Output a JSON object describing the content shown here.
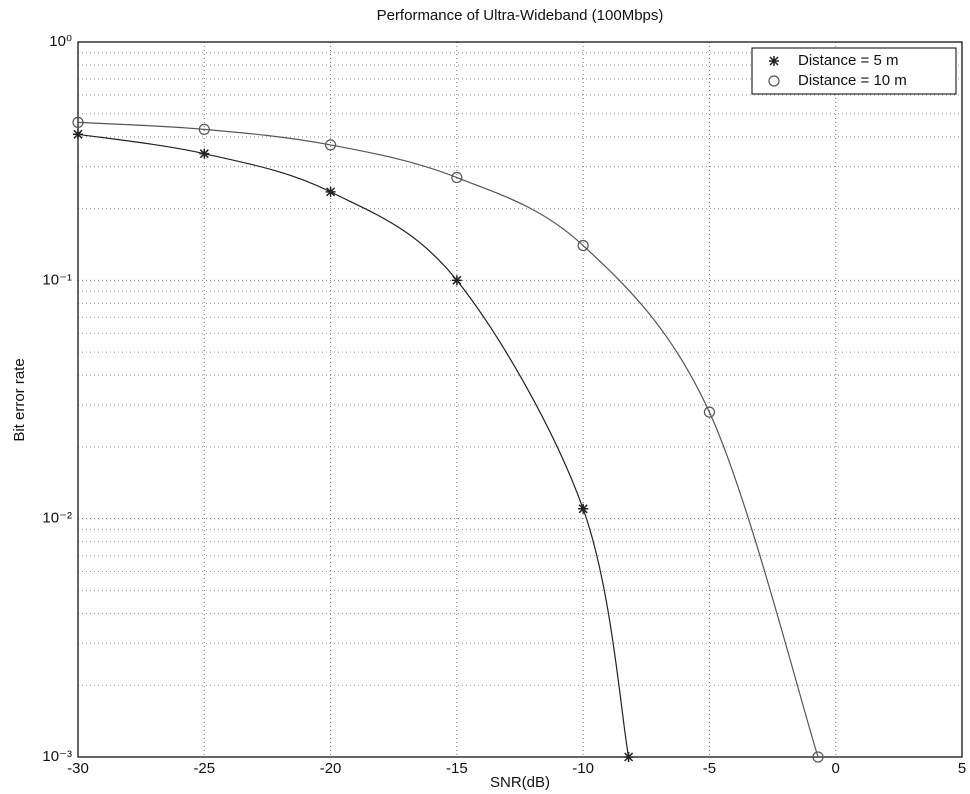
{
  "chart_data": {
    "type": "line",
    "title": "Performance of Ultra-Wideband (100Mbps)",
    "x_label": "SNR(dB)",
    "y_label": "Bit error rate",
    "xlim": [
      -30,
      5
    ],
    "xticks": [
      -30,
      -25,
      -20,
      -15,
      -10,
      -5,
      0,
      5
    ],
    "ylim": [
      0.001,
      1
    ],
    "y_log": true,
    "yticks": [
      {
        "value": 0.001,
        "label": "10⁻³"
      },
      {
        "value": 0.01,
        "label": "10⁻²"
      },
      {
        "value": 0.1,
        "label": "10⁻¹"
      },
      {
        "value": 1,
        "label": "10⁰"
      }
    ],
    "grid": true,
    "legend": "upper right",
    "series": [
      {
        "name": "Distance = 5 m",
        "color": "#222",
        "marker": "star",
        "x": [
          -30,
          -25,
          -20,
          -15,
          -10,
          -8.2
        ],
        "values": [
          0.41,
          0.34,
          0.235,
          0.1,
          0.011,
          0.001
        ]
      },
      {
        "name": "Distance = 10 m",
        "color": "#555",
        "marker": "circle",
        "x": [
          -30,
          -25,
          -20,
          -15,
          -10,
          -5,
          -0.7
        ],
        "values": [
          0.46,
          0.43,
          0.37,
          0.27,
          0.14,
          0.028,
          0.001
        ]
      }
    ]
  }
}
